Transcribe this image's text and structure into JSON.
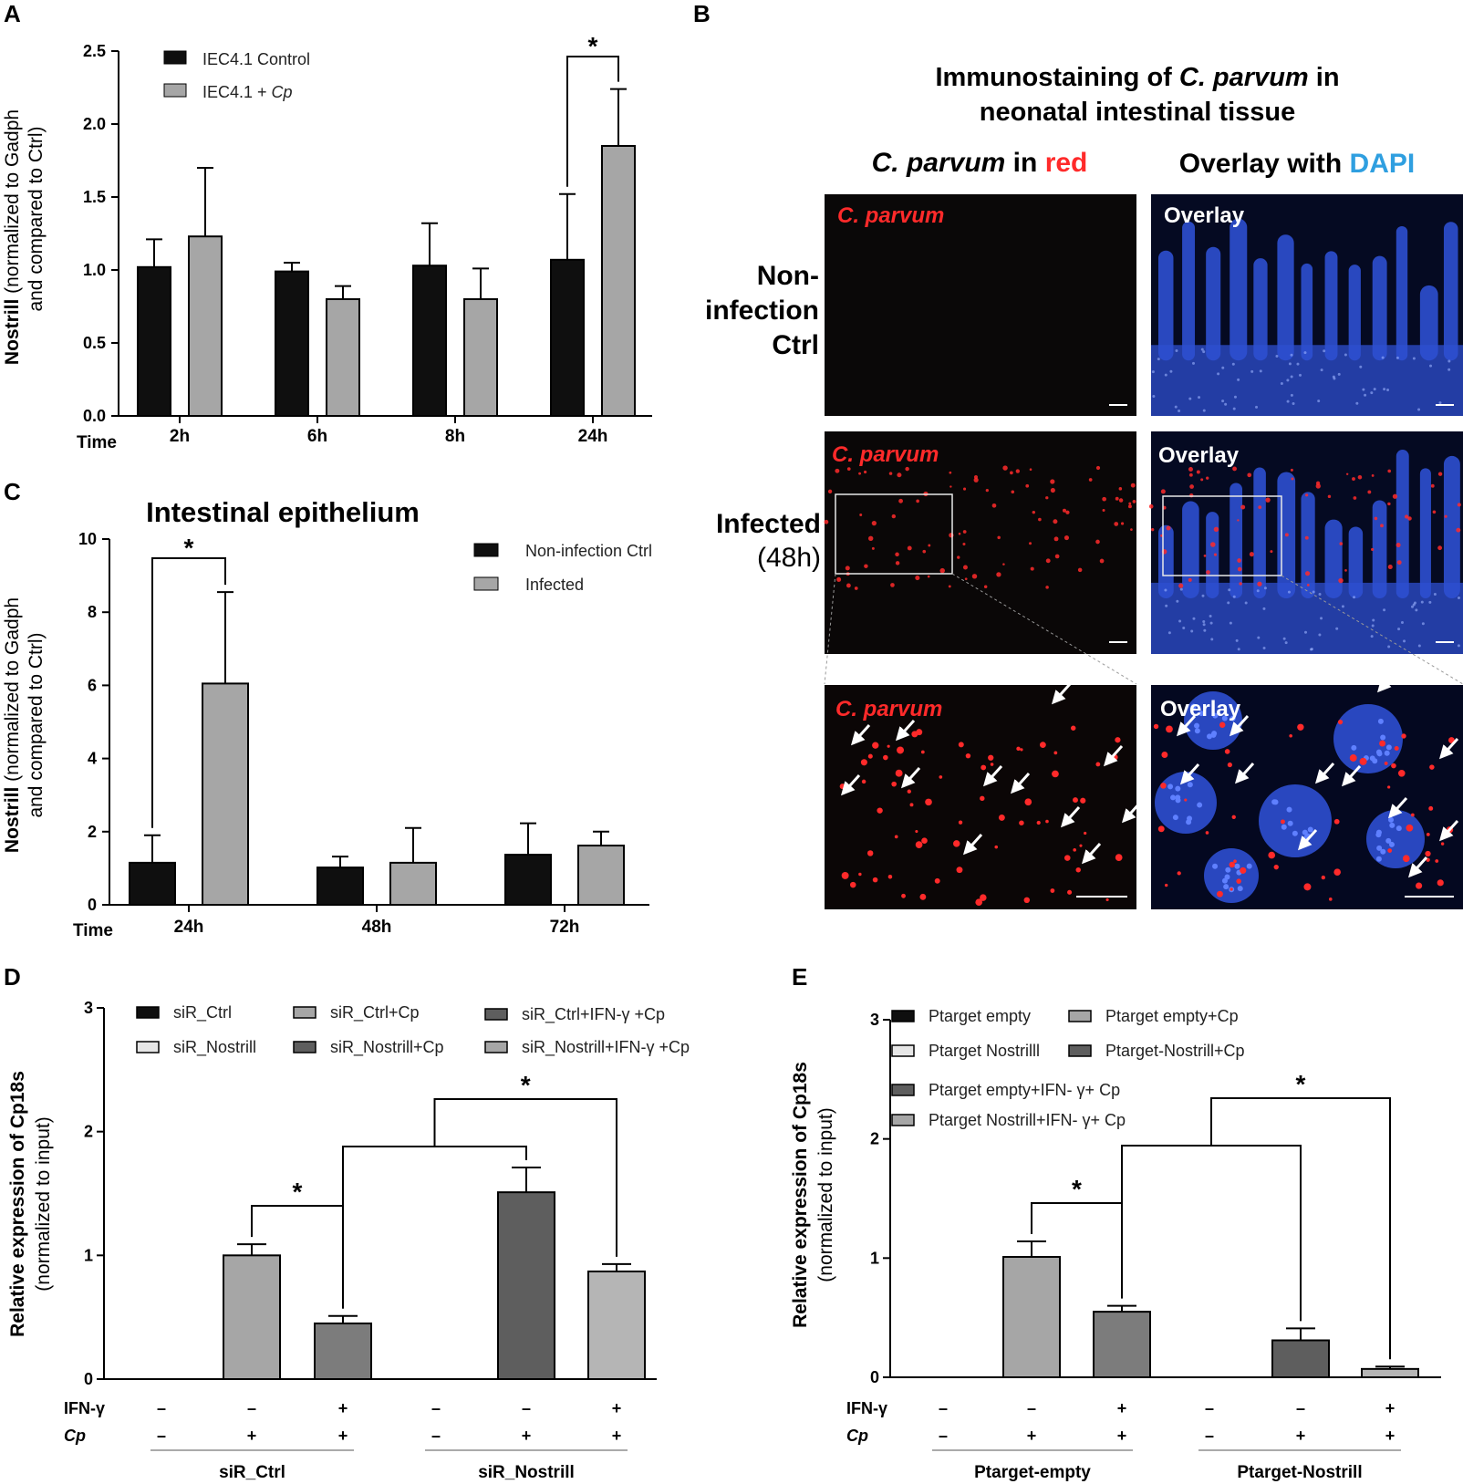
{
  "panel_letters": {
    "a": "A",
    "b": "B",
    "c": "C",
    "d": "D",
    "e": "E"
  },
  "colors": {
    "black": "#0f0f0f",
    "light_gray": "#a6a6a6",
    "dark_gray": "#5e5e5e",
    "mid_gray": "#7c7c7c",
    "lighter_gray": "#b5b5b5",
    "very_light": "#e6e6e6",
    "red": "#ff2a2a",
    "dapi_blue": "#2f8fd6",
    "nucleus_blue": "#2d4fd0"
  },
  "panel_b": {
    "title_line1_a": "Immunostaining of ",
    "title_line1_b": "C. parvum",
    "title_line1_c": " in",
    "title_line2": "neonatal intestinal tissue",
    "col1_a": "C. parvum",
    "col1_b": " in ",
    "col1_c": "red",
    "col2_a": "Overlay with ",
    "col2_b": "DAPI",
    "row1_l1": "Non-",
    "row1_l2": "infection",
    "row1_l3": "Ctrl",
    "row2_l1": "Infected",
    "row2_l2": "(48h)",
    "tile_cparvum": "C. parvum",
    "tile_overlay": "Overlay"
  },
  "chart_data": [
    {
      "id": "A",
      "type": "bar",
      "title": "",
      "xlabel": "Time",
      "ylabel_bold": "Nostrill",
      "ylabel_rest": " (normalized to Gadph",
      "ylabel_line2": "and compared to Ctrl)",
      "ylim": [
        0,
        2.5
      ],
      "yticks": [
        "0.0",
        "0.5",
        "1.0",
        "1.5",
        "2.0",
        "2.5"
      ],
      "categories": [
        "2h",
        "6h",
        "8h",
        "24h"
      ],
      "series": [
        {
          "name": "IEC4.1 Control",
          "values": [
            1.02,
            0.99,
            1.03,
            1.07
          ],
          "errors": [
            0.19,
            0.06,
            0.29,
            0.45
          ]
        },
        {
          "name": "IEC4.1 + Cp",
          "values": [
            1.23,
            0.8,
            0.8,
            1.85
          ],
          "errors": [
            0.47,
            0.09,
            0.21,
            0.39
          ]
        }
      ],
      "legend_prefix": "IEC4.1 + ",
      "legend_italic": "Cp",
      "annotations": [
        {
          "text": "*",
          "category": "24h"
        }
      ]
    },
    {
      "id": "C",
      "type": "bar",
      "title": "Intestinal epithelium",
      "xlabel": "Time",
      "ylabel_bold": "Nostrill",
      "ylabel_rest": " (normalized to Gadph",
      "ylabel_line2": "and compared to Ctrl)",
      "ylim": [
        0,
        10
      ],
      "yticks": [
        "0",
        "2",
        "4",
        "6",
        "8",
        "10"
      ],
      "categories": [
        "24h",
        "48h",
        "72h"
      ],
      "series": [
        {
          "name": "Non-infection Ctrl",
          "values": [
            1.15,
            1.02,
            1.37
          ],
          "errors": [
            0.75,
            0.3,
            0.86
          ]
        },
        {
          "name": "Infected",
          "values": [
            6.05,
            1.15,
            1.62
          ],
          "errors": [
            2.5,
            0.95,
            0.38
          ]
        }
      ],
      "annotations": [
        {
          "text": "*",
          "category": "24h"
        }
      ]
    },
    {
      "id": "D",
      "type": "bar",
      "title": "",
      "ylabel_bold": "Relative expression of Cp18s",
      "ylabel_line2": "(normalized to input)",
      "ylim": [
        0,
        3
      ],
      "yticks": [
        "0",
        "1",
        "2",
        "3"
      ],
      "bars": [
        {
          "name": "siR_Ctrl",
          "value": 0,
          "error": 0
        },
        {
          "name": "siR_Ctrl+Cp",
          "value": 1.0,
          "error": 0.09
        },
        {
          "name": "siR_Ctrl+IFN-γ+Cp",
          "value": 0.45,
          "error": 0.06
        },
        {
          "name": "siR_Nostrill",
          "value": 0,
          "error": 0
        },
        {
          "name": "siR_Nostrill+Cp",
          "value": 1.51,
          "error": 0.2
        },
        {
          "name": "siR_Nostrill+IFN-γ+Cp",
          "value": 0.87,
          "error": 0.06
        }
      ],
      "legend": [
        "siR_Ctrl",
        "siR_Ctrl+Cp",
        "siR_Ctrl+IFN-γ +Cp",
        "siR_Nostrill",
        "siR_Nostrill+Cp",
        "siR_Nostrill+IFN-γ +Cp"
      ],
      "row_labels": [
        "IFN-γ",
        "Cp"
      ],
      "ifn_signs": [
        "–",
        "–",
        "+",
        "–",
        "–",
        "+"
      ],
      "cp_signs": [
        "–",
        "+",
        "+",
        "–",
        "+",
        "+"
      ],
      "groups": [
        "siR_Ctrl",
        "siR_Nostrill"
      ],
      "annotations": [
        "*",
        "*"
      ]
    },
    {
      "id": "E",
      "type": "bar",
      "title": "",
      "ylabel_bold": "Relative expression of Cp18s",
      "ylabel_line2": "(normalized to input)",
      "ylim": [
        0,
        3
      ],
      "yticks": [
        "0",
        "1",
        "2",
        "3"
      ],
      "bars": [
        {
          "name": "Ptarget empty",
          "value": 0,
          "error": 0
        },
        {
          "name": "Ptarget empty+Cp",
          "value": 1.01,
          "error": 0.13
        },
        {
          "name": "Ptarget empty+IFN-γ+ Cp",
          "value": 0.55,
          "error": 0.05
        },
        {
          "name": "Ptarget Nostrill",
          "value": 0,
          "error": 0
        },
        {
          "name": "Ptarget-Nostrill+Cp",
          "value": 0.31,
          "error": 0.1
        },
        {
          "name": "Ptarget Nostrill+IFN-γ+ Cp",
          "value": 0.07,
          "error": 0.02
        }
      ],
      "legend": [
        "Ptarget empty",
        "Ptarget empty+Cp",
        "Ptarget Nostrilll",
        "Ptarget-Nostrill+Cp",
        "Ptarget empty+IFN- γ+ Cp",
        "Ptarget Nostrill+IFN- γ+ Cp"
      ],
      "row_labels": [
        "IFN-γ",
        "Cp"
      ],
      "ifn_signs": [
        "–",
        "–",
        "+",
        "–",
        "–",
        "+"
      ],
      "cp_signs": [
        "–",
        "+",
        "+",
        "–",
        "+",
        "+"
      ],
      "groups": [
        "Ptarget-empty",
        "Ptarget-Nostrill"
      ],
      "annotations": [
        "*",
        "*"
      ]
    }
  ]
}
